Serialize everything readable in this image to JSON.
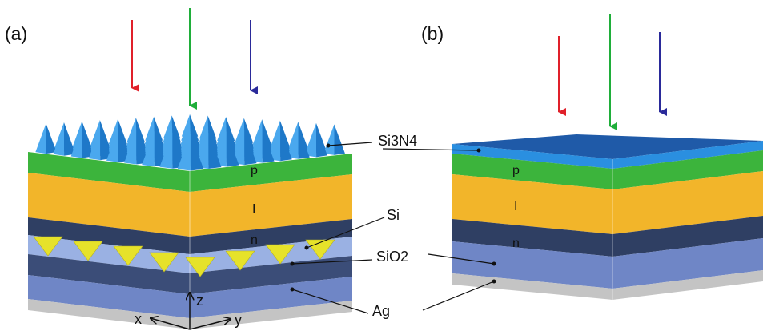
{
  "panels": [
    {
      "label": "(a)",
      "layers": [
        "p",
        "I",
        "n"
      ],
      "axes": [
        "x",
        "y",
        "z"
      ]
    },
    {
      "label": "(b)",
      "layers": [
        "p",
        "I",
        "n"
      ]
    }
  ],
  "callouts": [
    "Si3N4",
    "Si",
    "SiO2",
    "Ag"
  ]
}
